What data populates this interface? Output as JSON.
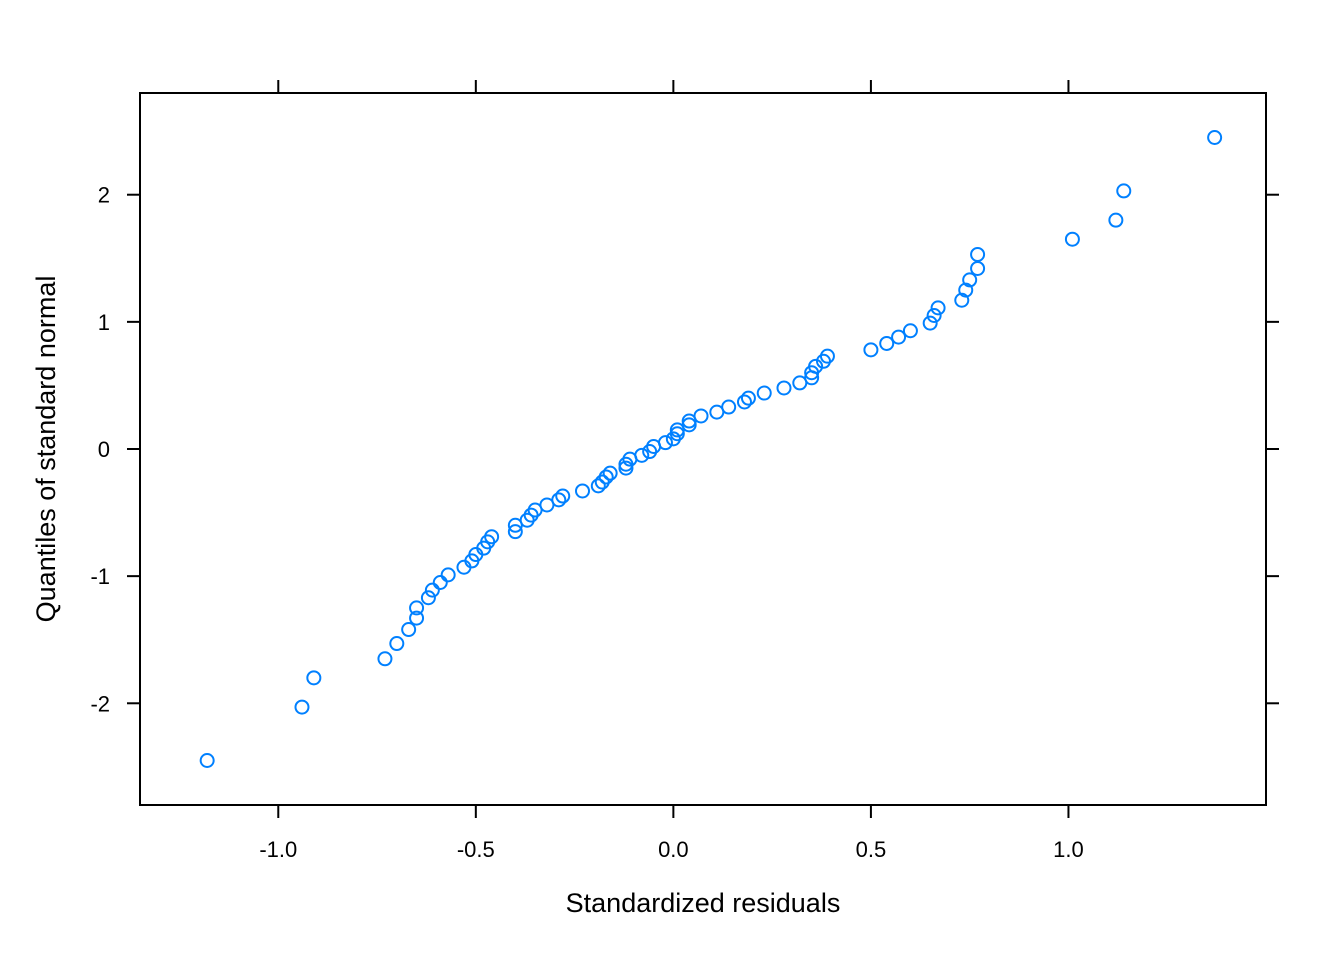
{
  "chart_data": {
    "type": "scatter",
    "title": "",
    "xlabel": "Standardized residuals",
    "ylabel": "Quantiles of standard normal",
    "xlim": [
      -1.35,
      1.5
    ],
    "ylim": [
      -2.8,
      2.8
    ],
    "x_ticks": [
      -1.0,
      -0.5,
      0.0,
      0.5,
      1.0
    ],
    "x_tick_labels": [
      "-1.0",
      "-0.5",
      "0.0",
      "0.5",
      "1.0"
    ],
    "y_ticks": [
      -2,
      -1,
      0,
      1,
      2
    ],
    "y_tick_labels": [
      "-2",
      "-1",
      "0",
      "1",
      "2"
    ],
    "grid": false,
    "marker": "open-circle",
    "point_color": "#0080ff",
    "points": [
      [
        -1.18,
        -2.45
      ],
      [
        -0.94,
        -2.03
      ],
      [
        -0.91,
        -1.8
      ],
      [
        -0.73,
        -1.65
      ],
      [
        -0.7,
        -1.53
      ],
      [
        -0.67,
        -1.42
      ],
      [
        -0.65,
        -1.33
      ],
      [
        -0.65,
        -1.25
      ],
      [
        -0.62,
        -1.17
      ],
      [
        -0.61,
        -1.11
      ],
      [
        -0.59,
        -1.05
      ],
      [
        -0.57,
        -0.99
      ],
      [
        -0.53,
        -0.93
      ],
      [
        -0.51,
        -0.88
      ],
      [
        -0.5,
        -0.83
      ],
      [
        -0.48,
        -0.78
      ],
      [
        -0.47,
        -0.73
      ],
      [
        -0.46,
        -0.69
      ],
      [
        -0.4,
        -0.65
      ],
      [
        -0.4,
        -0.6
      ],
      [
        -0.37,
        -0.56
      ],
      [
        -0.36,
        -0.52
      ],
      [
        -0.35,
        -0.48
      ],
      [
        -0.32,
        -0.44
      ],
      [
        -0.29,
        -0.4
      ],
      [
        -0.28,
        -0.37
      ],
      [
        -0.23,
        -0.33
      ],
      [
        -0.19,
        -0.29
      ],
      [
        -0.18,
        -0.26
      ],
      [
        -0.17,
        -0.22
      ],
      [
        -0.16,
        -0.19
      ],
      [
        -0.12,
        -0.15
      ],
      [
        -0.12,
        -0.12
      ],
      [
        -0.11,
        -0.08
      ],
      [
        -0.08,
        -0.05
      ],
      [
        -0.06,
        -0.02
      ],
      [
        -0.05,
        0.02
      ],
      [
        -0.02,
        0.05
      ],
      [
        0.0,
        0.08
      ],
      [
        0.01,
        0.12
      ],
      [
        0.01,
        0.15
      ],
      [
        0.04,
        0.19
      ],
      [
        0.04,
        0.22
      ],
      [
        0.07,
        0.26
      ],
      [
        0.11,
        0.29
      ],
      [
        0.14,
        0.33
      ],
      [
        0.18,
        0.37
      ],
      [
        0.19,
        0.4
      ],
      [
        0.23,
        0.44
      ],
      [
        0.28,
        0.48
      ],
      [
        0.32,
        0.52
      ],
      [
        0.35,
        0.56
      ],
      [
        0.35,
        0.6
      ],
      [
        0.36,
        0.65
      ],
      [
        0.38,
        0.69
      ],
      [
        0.39,
        0.73
      ],
      [
        0.5,
        0.78
      ],
      [
        0.54,
        0.83
      ],
      [
        0.57,
        0.88
      ],
      [
        0.6,
        0.93
      ],
      [
        0.65,
        0.99
      ],
      [
        0.66,
        1.05
      ],
      [
        0.67,
        1.11
      ],
      [
        0.73,
        1.17
      ],
      [
        0.74,
        1.25
      ],
      [
        0.75,
        1.33
      ],
      [
        0.77,
        1.42
      ],
      [
        0.77,
        1.53
      ],
      [
        1.01,
        1.65
      ],
      [
        1.12,
        1.8
      ],
      [
        1.14,
        2.03
      ],
      [
        1.37,
        2.45
      ]
    ]
  }
}
